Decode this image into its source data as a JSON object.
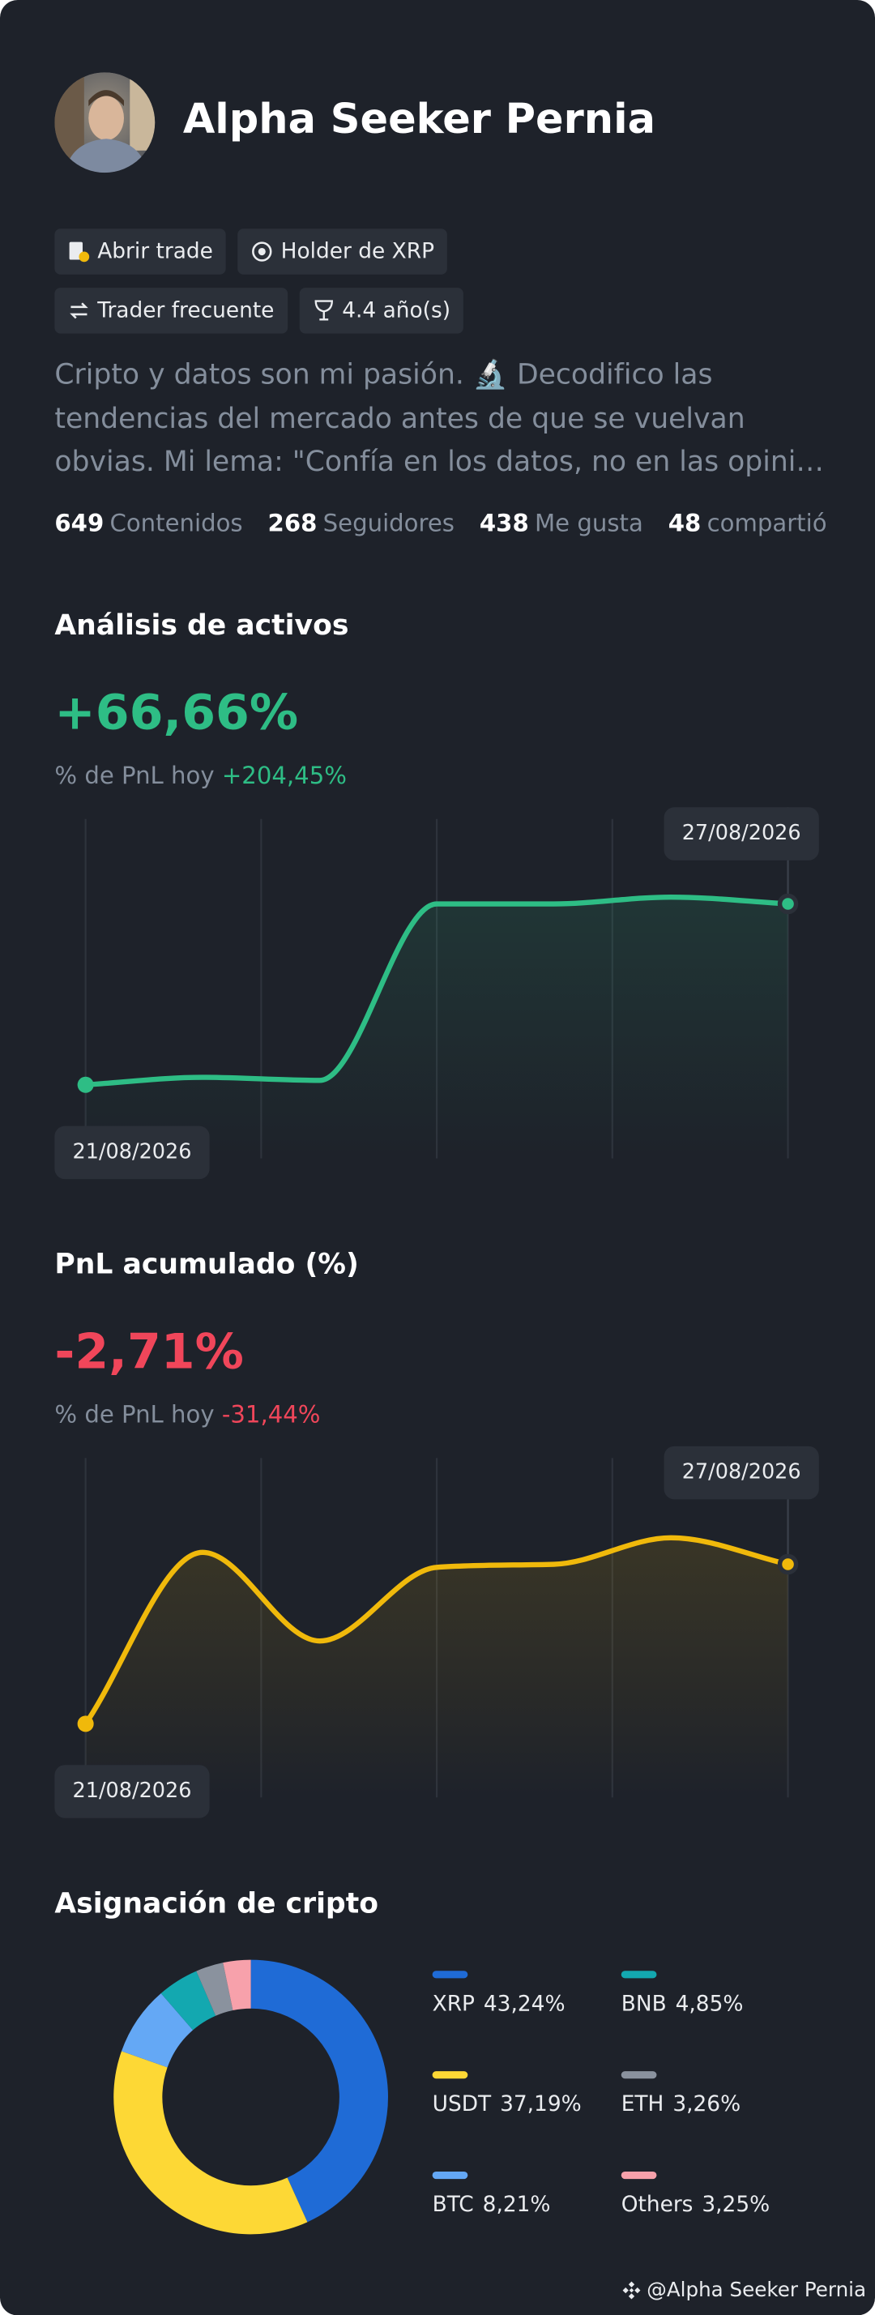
{
  "profile": {
    "name": "Alpha Seeker Pernia",
    "tags": [
      "Abrir trade",
      "Holder de XRP",
      "Trader frecuente",
      "4.4 año(s)"
    ],
    "bio": "Cripto y datos son mi pasión. 🔬 Decodifico las tendencias del mercado antes de que se vuelvan obvias. Mi lema: \"Confía en los datos, no en las opini…",
    "stats": [
      {
        "value": 649,
        "label": "Contenidos"
      },
      {
        "value": 268,
        "label": "Seguidores"
      },
      {
        "value": 438,
        "label": "Me gusta"
      },
      {
        "value": 48,
        "label": "compartió"
      }
    ],
    "footer": "@Alpha Seeker Pernia"
  },
  "chart_data": [
    {
      "type": "line",
      "title": "Análisis de activos",
      "headline": "+66,66%",
      "subtitle": "% de PnL hoy",
      "subtitle_value": "+204,45%",
      "categories": [
        "21/08/2026",
        null,
        null,
        null,
        null,
        null,
        "27/08/2026"
      ],
      "values": [
        21.7,
        23.9,
        23,
        75,
        75,
        77,
        75
      ],
      "ylim": [
        0,
        100
      ],
      "color": "#2ebd85"
    },
    {
      "type": "line",
      "title": "PnL acumulado (%)",
      "headline": "-2,71%",
      "subtitle": "% de PnL hoy",
      "subtitle_value": "-31,44%",
      "categories": [
        "21/08/2026",
        null,
        null,
        null,
        null,
        null,
        "27/08/2026"
      ],
      "values": [
        21.7,
        72.2,
        46.1,
        67.8,
        68.7,
        76.5,
        68.7
      ],
      "ylim": [
        0,
        100
      ],
      "color": "#f0b90b"
    },
    {
      "type": "pie",
      "title": "Asignación de cripto",
      "categories": [
        "XRP",
        "USDT",
        "BTC",
        "BNB",
        "ETH",
        "Others"
      ],
      "values": [
        43.24,
        37.19,
        8.21,
        4.85,
        3.26,
        3.25
      ],
      "value_labels": [
        "43,24%",
        "37,19%",
        "8,21%",
        "4,85%",
        "3,26%",
        "3,25%"
      ],
      "colors": [
        "#1f6bd6",
        "#fdd835",
        "#64a8f5",
        "#13a8b0",
        "#8a929e",
        "#f7a1ab"
      ]
    }
  ]
}
